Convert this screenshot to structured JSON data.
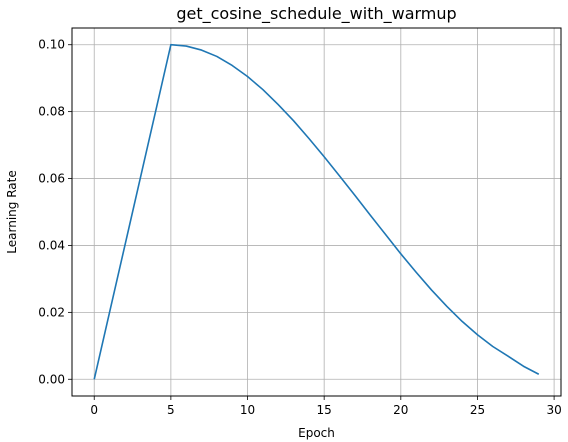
{
  "chart_data": {
    "type": "line",
    "title": "get_cosine_schedule_with_warmup",
    "xlabel": "Epoch",
    "ylabel": "Learning Rate",
    "xlim": [
      -1.45,
      30.45
    ],
    "ylim": [
      -0.005,
      0.105
    ],
    "grid": true,
    "xticks": [
      0,
      5,
      10,
      15,
      20,
      25,
      30
    ],
    "xtick_labels": [
      "0",
      "5",
      "10",
      "15",
      "20",
      "25",
      "30"
    ],
    "yticks": [
      0.0,
      0.02,
      0.04,
      0.06,
      0.08,
      0.1
    ],
    "ytick_labels": [
      "0.00",
      "0.02",
      "0.04",
      "0.06",
      "0.08",
      "0.10"
    ],
    "series": [
      {
        "color": "#1f77b4",
        "x": [
          0,
          1,
          2,
          3,
          4,
          5,
          6,
          7,
          8,
          9,
          10,
          11,
          12,
          13,
          14,
          15,
          16,
          17,
          18,
          19,
          20,
          21,
          22,
          23,
          24,
          25,
          26,
          27,
          28,
          29
        ],
        "y": [
          0.0,
          0.02,
          0.04,
          0.06,
          0.08,
          0.1,
          0.0996,
          0.0984,
          0.0965,
          0.0938,
          0.0905,
          0.0866,
          0.0821,
          0.0773,
          0.072,
          0.0665,
          0.0608,
          0.055,
          0.0491,
          0.0433,
          0.0375,
          0.032,
          0.0267,
          0.0218,
          0.0173,
          0.0133,
          0.0098,
          0.0069,
          0.0039,
          0.0015
        ]
      }
    ]
  }
}
